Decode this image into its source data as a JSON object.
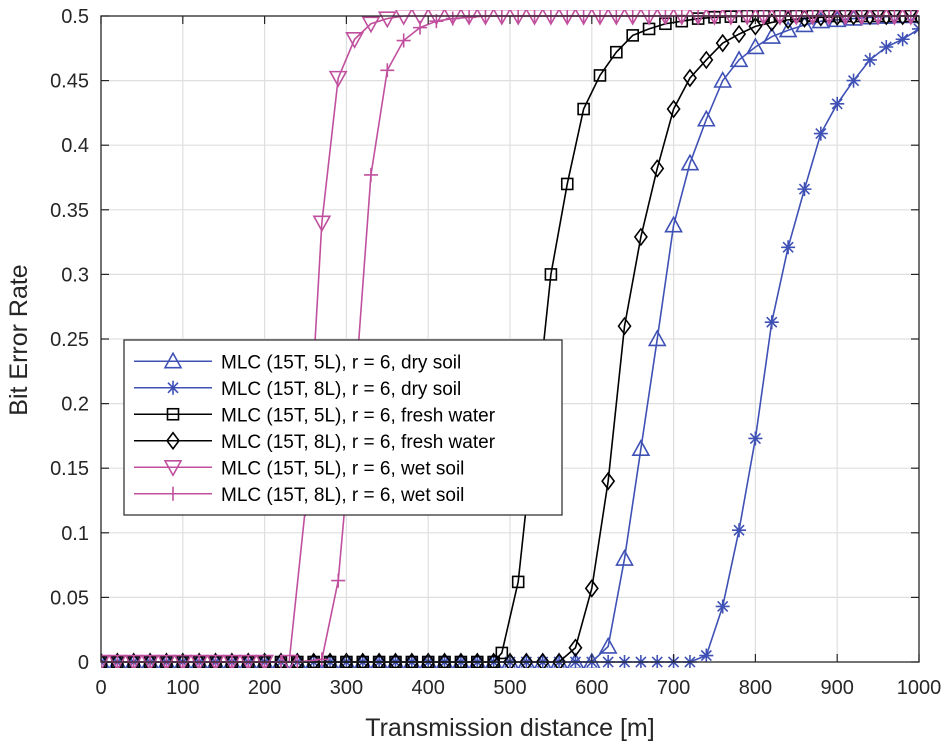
{
  "chart_data": {
    "type": "line",
    "title": "",
    "xlabel": "Transmission  distance [m]",
    "ylabel": "Bit Error Rate",
    "xlim": [
      0,
      1000
    ],
    "ylim": [
      0,
      0.5
    ],
    "grid": true,
    "legend_position": "middle-left",
    "x_ticks": [
      0,
      100,
      200,
      300,
      400,
      500,
      600,
      700,
      800,
      900,
      1000
    ],
    "x_tick_labels": [
      "0",
      "100",
      "200",
      "300",
      "400",
      "500",
      "600",
      "700",
      "800",
      "900",
      "1000"
    ],
    "y_ticks": [
      0,
      0.05,
      0.1,
      0.15,
      0.2,
      0.25,
      0.3,
      0.35,
      0.4,
      0.45,
      0.5
    ],
    "y_tick_labels": [
      "0",
      "0.05",
      "0.1",
      "0.15",
      "0.2",
      "0.25",
      "0.3",
      "0.35",
      "0.4",
      "0.45",
      "0.5"
    ],
    "series": [
      {
        "name": "MLC (15T, 5L), r = 6, dry soil",
        "color": "#3F51B5",
        "marker": "triangle-up",
        "x": [
          0,
          20,
          40,
          60,
          80,
          100,
          120,
          140,
          160,
          180,
          200,
          220,
          240,
          260,
          280,
          300,
          320,
          340,
          360,
          380,
          400,
          420,
          440,
          460,
          480,
          500,
          520,
          540,
          560,
          580,
          600,
          620,
          640,
          660,
          680,
          700,
          720,
          740,
          760,
          780,
          800,
          820,
          840,
          860,
          880,
          900,
          920,
          940,
          960,
          980,
          1000
        ],
        "y": [
          0,
          0,
          0,
          0,
          0,
          0,
          0,
          0,
          0,
          0,
          0,
          0,
          0,
          0,
          0,
          0,
          0,
          0,
          0,
          0,
          0,
          0,
          0,
          0,
          0,
          0,
          0,
          0,
          0,
          0,
          0,
          0.012,
          0.08,
          0.165,
          0.25,
          0.338,
          0.386,
          0.42,
          0.45,
          0.466,
          0.476,
          0.484,
          0.489,
          0.493,
          0.496,
          0.497,
          0.498,
          0.499,
          0.4995,
          0.5,
          0.5
        ]
      },
      {
        "name": "MLC (15T, 8L), r = 6, dry soil",
        "color": "#3F51B5",
        "marker": "asterisk",
        "x": [
          0,
          20,
          40,
          60,
          80,
          100,
          120,
          140,
          160,
          180,
          200,
          220,
          240,
          260,
          280,
          300,
          320,
          340,
          360,
          380,
          400,
          420,
          440,
          460,
          480,
          500,
          520,
          540,
          560,
          580,
          600,
          620,
          640,
          660,
          680,
          700,
          720,
          740,
          760,
          780,
          800,
          820,
          840,
          860,
          880,
          900,
          920,
          940,
          960,
          980,
          1000
        ],
        "y": [
          0,
          0,
          0,
          0,
          0,
          0,
          0,
          0,
          0,
          0,
          0,
          0,
          0,
          0,
          0,
          0,
          0,
          0,
          0,
          0,
          0,
          0,
          0,
          0,
          0,
          0,
          0,
          0,
          0,
          0,
          0,
          0,
          0,
          0,
          0,
          0,
          0,
          0.005,
          0.043,
          0.102,
          0.173,
          0.263,
          0.321,
          0.366,
          0.409,
          0.432,
          0.45,
          0.466,
          0.476,
          0.482,
          0.49
        ]
      },
      {
        "name": "MLC (15T, 5L), r = 6, fresh water",
        "color": "#000000",
        "marker": "square",
        "x": [
          0,
          20,
          40,
          60,
          80,
          100,
          120,
          140,
          160,
          180,
          200,
          220,
          240,
          260,
          280,
          300,
          320,
          340,
          360,
          380,
          400,
          420,
          440,
          460,
          480,
          490,
          510,
          530,
          550,
          570,
          590,
          610,
          630,
          650,
          670,
          690,
          710,
          730,
          750,
          770,
          790,
          810,
          830,
          850,
          870,
          890,
          910,
          930,
          950,
          970,
          990
        ],
        "y": [
          0,
          0,
          0,
          0,
          0,
          0,
          0,
          0,
          0,
          0,
          0,
          0,
          0,
          0,
          0,
          0,
          0,
          0,
          0,
          0,
          0,
          0,
          0,
          0,
          0,
          0.007,
          0.062,
          0.18,
          0.3,
          0.37,
          0.428,
          0.454,
          0.472,
          0.485,
          0.49,
          0.494,
          0.496,
          0.498,
          0.499,
          0.4995,
          0.5,
          0.5,
          0.5,
          0.5,
          0.5,
          0.5,
          0.5,
          0.5,
          0.5,
          0.5,
          0.5
        ]
      },
      {
        "name": "MLC (15T, 8L), r = 6, fresh water",
        "color": "#000000",
        "marker": "diamond",
        "x": [
          0,
          20,
          40,
          60,
          80,
          100,
          120,
          140,
          160,
          180,
          200,
          220,
          240,
          260,
          280,
          300,
          320,
          340,
          360,
          380,
          400,
          420,
          440,
          460,
          480,
          500,
          520,
          540,
          560,
          580,
          600,
          620,
          640,
          660,
          680,
          700,
          720,
          740,
          760,
          780,
          800,
          820,
          840,
          860,
          880,
          900,
          920,
          940,
          960,
          980,
          1000
        ],
        "y": [
          0,
          0,
          0,
          0,
          0,
          0,
          0,
          0,
          0,
          0,
          0,
          0,
          0,
          0,
          0,
          0,
          0,
          0,
          0,
          0,
          0,
          0,
          0,
          0,
          0,
          0,
          0,
          0,
          0,
          0.011,
          0.057,
          0.14,
          0.26,
          0.329,
          0.382,
          0.428,
          0.452,
          0.466,
          0.479,
          0.486,
          0.492,
          0.495,
          0.497,
          0.498,
          0.499,
          0.4995,
          0.5,
          0.5,
          0.5,
          0.5,
          0.5
        ]
      },
      {
        "name": "MLC (15T, 5L), r = 6, wet soil",
        "color": "#C0509E",
        "marker": "triangle-down",
        "x": [
          0,
          20,
          40,
          60,
          80,
          100,
          120,
          140,
          160,
          180,
          200,
          230,
          250,
          270,
          290,
          310,
          330,
          350,
          370,
          390,
          410,
          430,
          450,
          470,
          490,
          510,
          530,
          550,
          570,
          590,
          610,
          630,
          650,
          670,
          690,
          710,
          730,
          750,
          770,
          790,
          810,
          830,
          850,
          870,
          890,
          910,
          930,
          950,
          970,
          990
        ],
        "y": [
          0,
          0,
          0,
          0,
          0,
          0,
          0,
          0,
          0,
          0,
          0,
          0,
          0.12,
          0.34,
          0.452,
          0.482,
          0.494,
          0.498,
          0.5,
          0.5,
          0.5,
          0.5,
          0.5,
          0.5,
          0.5,
          0.5,
          0.5,
          0.5,
          0.5,
          0.5,
          0.5,
          0.5,
          0.5,
          0.5,
          0.5,
          0.5,
          0.5,
          0.5,
          0.5,
          0.5,
          0.5,
          0.5,
          0.5,
          0.5,
          0.5,
          0.5,
          0.5,
          0.5,
          0.5,
          0.5
        ]
      },
      {
        "name": "MLC (15T, 8L), r = 6, wet soil",
        "color": "#C0509E",
        "marker": "plus",
        "x": [
          0,
          20,
          40,
          60,
          80,
          100,
          120,
          140,
          160,
          180,
          200,
          220,
          240,
          270,
          290,
          310,
          330,
          350,
          370,
          390,
          410,
          430,
          450,
          470,
          490,
          510,
          530,
          550,
          570,
          590,
          610,
          630,
          650,
          670,
          690,
          710,
          730,
          750,
          770,
          790,
          810,
          830,
          850,
          870,
          890,
          910,
          930,
          950,
          970,
          990
        ],
        "y": [
          0,
          0,
          0,
          0,
          0,
          0,
          0,
          0,
          0,
          0,
          0,
          0,
          0,
          0.002,
          0.063,
          0.205,
          0.377,
          0.458,
          0.481,
          0.491,
          0.496,
          0.498,
          0.499,
          0.5,
          0.5,
          0.5,
          0.5,
          0.5,
          0.5,
          0.5,
          0.5,
          0.5,
          0.5,
          0.5,
          0.5,
          0.5,
          0.5,
          0.5,
          0.5,
          0.5,
          0.5,
          0.5,
          0.5,
          0.5,
          0.5,
          0.5,
          0.5,
          0.5,
          0.5,
          0.5
        ]
      }
    ]
  }
}
